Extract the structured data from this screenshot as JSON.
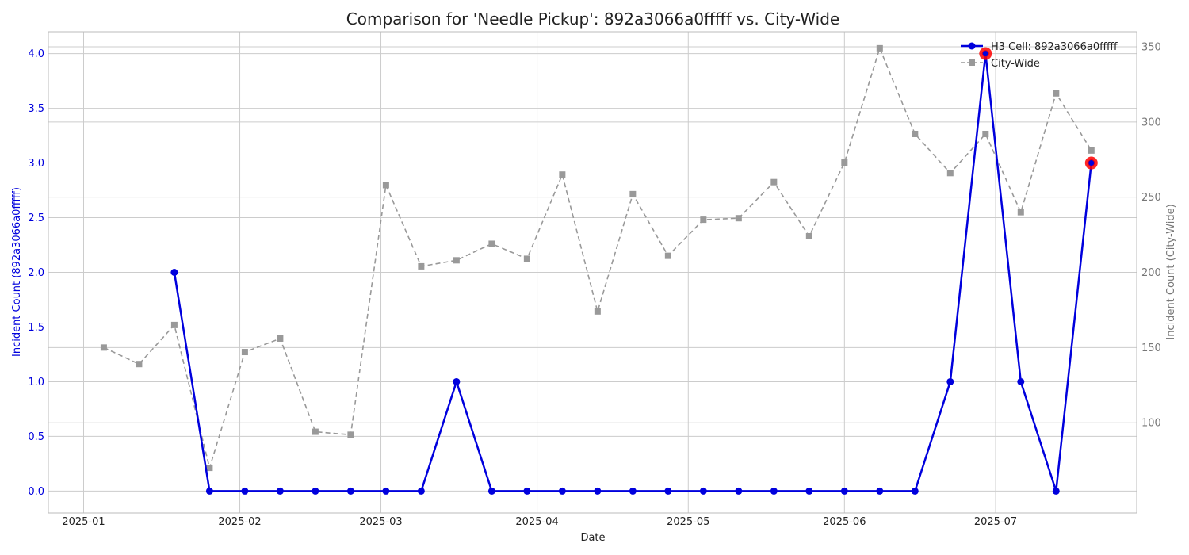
{
  "chart_data": {
    "type": "line",
    "title": "Comparison for 'Needle Pickup': 892a3066a0fffff vs. City-Wide",
    "xlabel": "Date",
    "ylabel_left": "Incident Count (892a3066a0fffff)",
    "ylabel_right": "Incident Count (City-Wide)",
    "x_ticks": [
      "2025-01",
      "2025-02",
      "2025-03",
      "2025-04",
      "2025-05",
      "2025-06",
      "2025-07"
    ],
    "x_tick_dates": [
      "2025-01-01",
      "2025-02-01",
      "2025-03-01",
      "2025-04-01",
      "2025-05-01",
      "2025-06-01",
      "2025-07-01"
    ],
    "x_range": [
      "2024-12-25",
      "2025-07-29"
    ],
    "y_left": {
      "range": [
        -0.2,
        4.2
      ],
      "ticks": [
        "0.0",
        "0.5",
        "1.0",
        "1.5",
        "2.0",
        "2.5",
        "3.0",
        "3.5",
        "4.0"
      ]
    },
    "y_right": {
      "range": [
        40,
        360
      ],
      "ticks": [
        "100",
        "150",
        "200",
        "250",
        "300",
        "350"
      ]
    },
    "grid": true,
    "legend_position": "top-right",
    "series": [
      {
        "name": "H3 Cell: 892a3066a0fffff",
        "axis": "left",
        "color": "#0000dd",
        "style": "solid",
        "marker": "circle",
        "dates": [
          "2025-01-19",
          "2025-01-26",
          "2025-02-02",
          "2025-02-09",
          "2025-02-16",
          "2025-02-23",
          "2025-03-02",
          "2025-03-09",
          "2025-03-16",
          "2025-03-23",
          "2025-03-30",
          "2025-04-06",
          "2025-04-13",
          "2025-04-20",
          "2025-04-27",
          "2025-05-04",
          "2025-05-11",
          "2025-05-18",
          "2025-05-25",
          "2025-06-01",
          "2025-06-08",
          "2025-06-15",
          "2025-06-22",
          "2025-06-29",
          "2025-07-06",
          "2025-07-13",
          "2025-07-20"
        ],
        "values": [
          2,
          0,
          0,
          0,
          0,
          0,
          0,
          0,
          1,
          0,
          0,
          0,
          0,
          0,
          0,
          0,
          0,
          0,
          0,
          0,
          0,
          0,
          1,
          4,
          1,
          0,
          3
        ]
      },
      {
        "name": "City-Wide",
        "axis": "right",
        "color": "#999999",
        "style": "dashed",
        "marker": "square",
        "dates": [
          "2025-01-05",
          "2025-01-12",
          "2025-01-19",
          "2025-01-26",
          "2025-02-02",
          "2025-02-09",
          "2025-02-16",
          "2025-02-23",
          "2025-03-02",
          "2025-03-09",
          "2025-03-16",
          "2025-03-23",
          "2025-03-30",
          "2025-04-06",
          "2025-04-13",
          "2025-04-20",
          "2025-04-27",
          "2025-05-04",
          "2025-05-11",
          "2025-05-18",
          "2025-05-25",
          "2025-06-01",
          "2025-06-08",
          "2025-06-15",
          "2025-06-22",
          "2025-06-29",
          "2025-07-06",
          "2025-07-13",
          "2025-07-20"
        ],
        "values": [
          150,
          139,
          165,
          70,
          147,
          156,
          94,
          92,
          258,
          204,
          208,
          219,
          209,
          265,
          174,
          252,
          211,
          235,
          236,
          260,
          224,
          273,
          349,
          292,
          266,
          292,
          240,
          319,
          281
        ]
      }
    ],
    "highlights": [
      {
        "series": "H3 Cell: 892a3066a0fffff",
        "date": "2025-06-29",
        "value": 4,
        "color": "#ff0000"
      },
      {
        "series": "H3 Cell: 892a3066a0fffff",
        "date": "2025-07-20",
        "value": 3,
        "color": "#ff0000"
      }
    ],
    "colors": {
      "left_axis": "#0000dd",
      "right_axis": "#777777",
      "grid": "#cccccc",
      "frame": "#bbbbbb"
    }
  }
}
